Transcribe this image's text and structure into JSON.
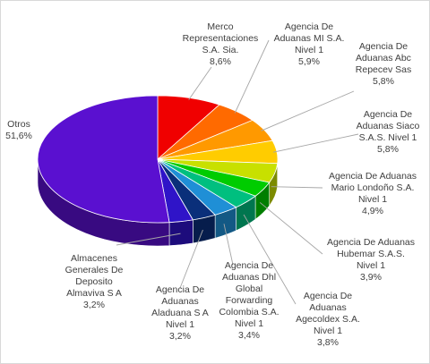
{
  "chart_data": {
    "type": "pie",
    "style": "3d",
    "legend": "none",
    "slices": [
      {
        "label": "Merco Representaciones S.A. Sia.",
        "value": 8.6,
        "display": "8,6%",
        "color": "#f00000"
      },
      {
        "label": "Agencia De Aduanas MI S.A. Nivel 1",
        "value": 5.9,
        "display": "5,9%",
        "color": "#ff6a00"
      },
      {
        "label": "Agencia De Aduanas Abc Repecev Sas",
        "value": 5.8,
        "display": "5,8%",
        "color": "#ff9900"
      },
      {
        "label": "Agencia De Aduanas Siaco S.A.S. Nivel 1",
        "value": 5.8,
        "display": "5,8%",
        "color": "#ffcc00"
      },
      {
        "label": "Agencia De Aduanas Mario Londoño S.A. Nivel 1",
        "value": 4.9,
        "display": "4,9%",
        "color": "#c8e000"
      },
      {
        "label": "Agencia De Aduanas Hubemar S.A.S. Nivel 1",
        "value": 3.9,
        "display": "3,9%",
        "color": "#00cc00"
      },
      {
        "label": "Agencia De Aduanas Agecoldex S.A. Nivel 1",
        "value": 3.8,
        "display": "3,8%",
        "color": "#00bf7f"
      },
      {
        "label": "Agencia De Aduanas Dhl Global Forwarding Colombia S.A. Nivel 1",
        "value": 3.4,
        "display": "3,4%",
        "color": "#1f8fd6"
      },
      {
        "label": "Agencia De Aduanas Aladuana S A Nivel 1",
        "value": 3.2,
        "display": "3,2%",
        "color": "#0a2f7a"
      },
      {
        "label": "Almacenes Generales De Deposito Almaviva S A",
        "value": 3.2,
        "display": "3,2%",
        "color": "#2f14c8"
      },
      {
        "label": "Otros",
        "value": 51.6,
        "display": "51,6%",
        "color": "#5a10d0"
      }
    ]
  }
}
